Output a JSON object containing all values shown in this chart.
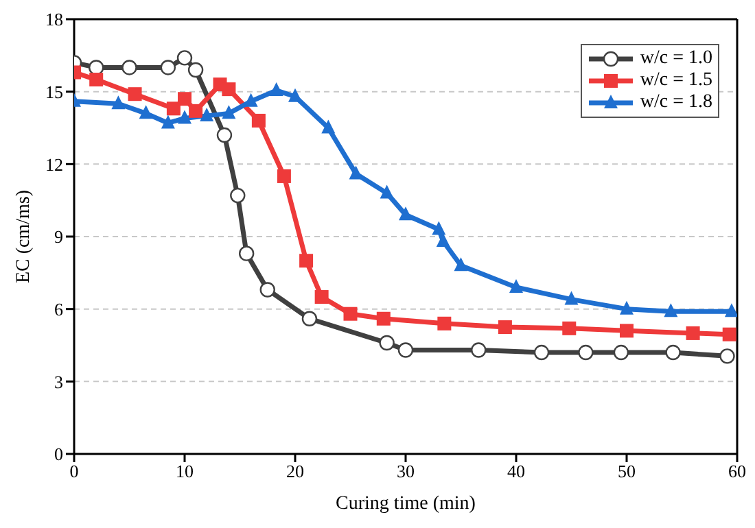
{
  "chart_data": {
    "type": "line",
    "xlabel": "Curing time (min)",
    "ylabel": "EC (cm/ms)",
    "xlim": [
      0,
      60
    ],
    "xticks": [
      0,
      10,
      20,
      30,
      40,
      50,
      60
    ],
    "ylim": [
      0,
      18
    ],
    "yticks": [
      0,
      3,
      6,
      9,
      12,
      15,
      18
    ],
    "grid": "y",
    "legend": "top right",
    "line_style": "solid",
    "series": [
      {
        "name": "w/c = 1.0",
        "color": "#404040",
        "marker": "circle",
        "x": [
          0,
          2,
          5,
          8.5,
          10,
          11,
          13.6,
          14.8,
          15.6,
          17.5,
          21.3,
          28.3,
          30,
          36.6,
          42.3,
          46.3,
          49.5,
          54.2,
          59.1
        ],
        "values": [
          16.2,
          16.0,
          16.0,
          16.0,
          16.4,
          15.9,
          13.2,
          10.7,
          8.3,
          6.8,
          5.6,
          4.6,
          4.3,
          4.3,
          4.2,
          4.2,
          4.2,
          4.2,
          4.05
        ]
      },
      {
        "name": "w/c = 1.5",
        "color": "#ee3a3a",
        "marker": "square",
        "x": [
          0,
          2,
          5.5,
          9,
          10,
          11,
          13.2,
          14,
          16.7,
          19,
          21,
          22.4,
          25,
          28,
          33.5,
          39,
          44.8,
          50,
          56,
          59.3
        ],
        "values": [
          15.8,
          15.5,
          14.9,
          14.3,
          14.7,
          14.2,
          15.3,
          15.1,
          13.8,
          11.5,
          8,
          6.5,
          5.8,
          5.6,
          5.4,
          5.25,
          5.2,
          5.1,
          5.0,
          4.95
        ]
      },
      {
        "name": "w/c = 1.8",
        "color": "#1f6fd0",
        "marker": "triangle",
        "x": [
          0,
          4,
          6.5,
          8.5,
          10,
          12,
          14,
          16,
          18.3,
          20,
          23,
          25.5,
          28.3,
          30,
          33,
          33.4,
          35,
          40,
          45,
          50,
          54,
          59.5
        ],
        "values": [
          14.6,
          14.5,
          14.1,
          13.7,
          13.9,
          14,
          14.1,
          14.6,
          15.05,
          14.8,
          13.5,
          11.6,
          10.8,
          9.9,
          9.3,
          8.8,
          7.8,
          6.9,
          6.4,
          6.0,
          5.9,
          5.9
        ]
      }
    ]
  }
}
